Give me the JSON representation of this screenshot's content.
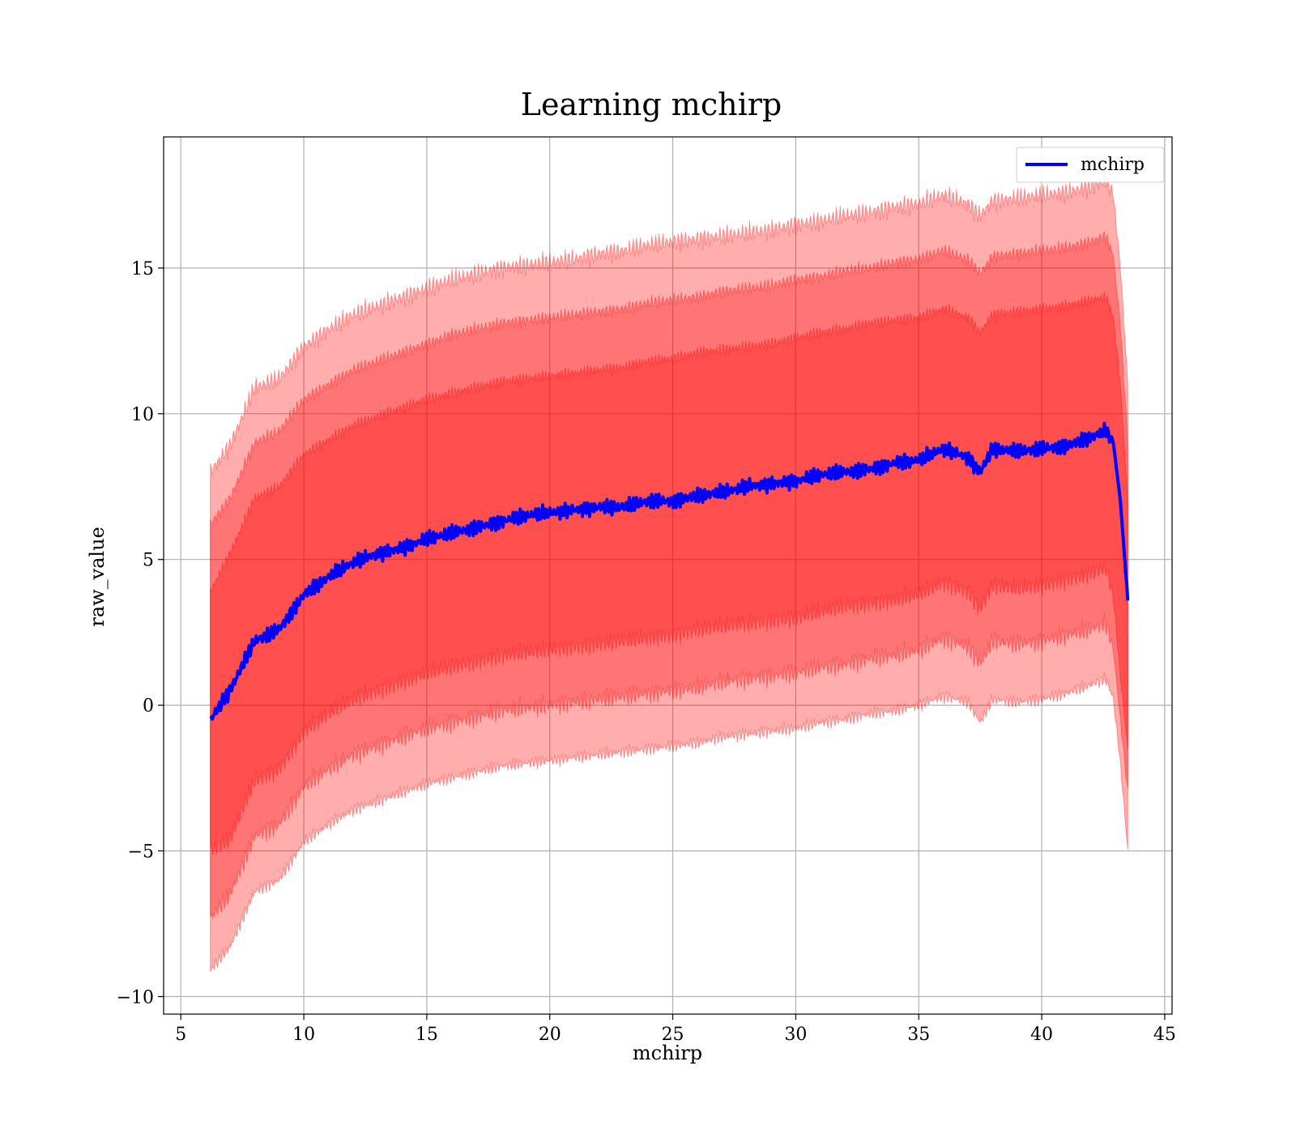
{
  "chart_data": {
    "type": "area",
    "title": "Learning mchirp",
    "xlabel": "mchirp",
    "ylabel": "raw_value",
    "xlim": [
      4.3,
      45.3
    ],
    "ylim": [
      -10.6,
      19.5
    ],
    "xticks": [
      5,
      10,
      15,
      20,
      25,
      30,
      35,
      40,
      45
    ],
    "xtick_labels": [
      "5",
      "10",
      "15",
      "20",
      "25",
      "30",
      "35",
      "40",
      "45"
    ],
    "yticks": [
      -10,
      -5,
      0,
      5,
      10,
      15
    ],
    "ytick_labels": [
      "−10",
      "−5",
      "0",
      "5",
      "10",
      "15"
    ],
    "grid": true,
    "legend_position": "top-right",
    "legend": [
      "mchirp"
    ],
    "colors": {
      "line": "#0000ff",
      "band": "#ff0000",
      "grid": "#b0b0b0"
    },
    "x": [
      6.2,
      7,
      8,
      9,
      10,
      11,
      12,
      13,
      14,
      15,
      16,
      17,
      18,
      19,
      20,
      21,
      22,
      23,
      24,
      25,
      26,
      27,
      28,
      29,
      30,
      31,
      32,
      33,
      34,
      35,
      36,
      37,
      37.5,
      38,
      39,
      40,
      41,
      42,
      42.6,
      42.9,
      43.2,
      43.5
    ],
    "series": [
      {
        "name": "mchirp",
        "values": [
          -0.5,
          0.5,
          2.2,
          2.6,
          3.8,
          4.4,
          4.9,
          5.2,
          5.4,
          5.7,
          5.9,
          6.1,
          6.3,
          6.5,
          6.6,
          6.7,
          6.8,
          6.8,
          7.0,
          7.0,
          7.2,
          7.3,
          7.5,
          7.6,
          7.7,
          7.9,
          8.0,
          8.1,
          8.3,
          8.4,
          8.8,
          8.5,
          8.0,
          8.8,
          8.7,
          8.8,
          8.9,
          9.2,
          9.4,
          9.1,
          7.0,
          3.6
        ]
      }
    ],
    "bands": [
      {
        "sigma": 3,
        "lower": [
          -9.1,
          -8.3,
          -6.4,
          -6.0,
          -4.7,
          -4.1,
          -3.6,
          -3.3,
          -3.0,
          -2.7,
          -2.5,
          -2.3,
          -2.1,
          -2.0,
          -1.9,
          -1.8,
          -1.7,
          -1.6,
          -1.5,
          -1.4,
          -1.3,
          -1.1,
          -1.0,
          -0.9,
          -0.8,
          -0.6,
          -0.5,
          -0.3,
          -0.2,
          0.0,
          0.3,
          0.1,
          -0.6,
          0.2,
          0.1,
          0.2,
          0.4,
          0.7,
          0.9,
          0.3,
          -2.0,
          -5.0
        ],
        "upper": [
          8.0,
          8.9,
          10.9,
          11.2,
          12.3,
          12.9,
          13.4,
          13.7,
          14.0,
          14.3,
          14.6,
          14.8,
          15.0,
          15.1,
          15.2,
          15.3,
          15.5,
          15.6,
          15.8,
          15.9,
          16.0,
          16.1,
          16.2,
          16.3,
          16.5,
          16.6,
          16.8,
          16.9,
          17.1,
          17.2,
          17.5,
          17.2,
          16.8,
          17.3,
          17.4,
          17.5,
          17.6,
          17.8,
          18.0,
          17.6,
          15.0,
          11.0
        ]
      },
      {
        "sigma": 2,
        "lower": [
          -7.3,
          -6.5,
          -4.5,
          -4.1,
          -2.8,
          -2.2,
          -1.7,
          -1.4,
          -1.1,
          -0.8,
          -0.6,
          -0.4,
          -0.2,
          -0.1,
          0.0,
          0.1,
          0.2,
          0.3,
          0.4,
          0.5,
          0.6,
          0.8,
          0.9,
          1.0,
          1.1,
          1.3,
          1.4,
          1.6,
          1.7,
          1.9,
          2.3,
          2.0,
          1.4,
          2.2,
          2.1,
          2.2,
          2.4,
          2.6,
          2.8,
          2.0,
          -0.5,
          -3.0
        ],
        "upper": [
          6.2,
          7.1,
          9.0,
          9.4,
          10.5,
          11.0,
          11.5,
          11.8,
          12.1,
          12.4,
          12.7,
          12.9,
          13.1,
          13.2,
          13.3,
          13.4,
          13.5,
          13.6,
          13.8,
          13.9,
          14.0,
          14.2,
          14.3,
          14.4,
          14.6,
          14.7,
          14.9,
          15.0,
          15.2,
          15.3,
          15.6,
          15.3,
          14.8,
          15.4,
          15.5,
          15.6,
          15.7,
          15.9,
          16.1,
          15.5,
          13.0,
          9.0
        ]
      },
      {
        "sigma": 1,
        "lower": [
          -5.0,
          -4.6,
          -2.6,
          -2.2,
          -0.9,
          -0.3,
          0.2,
          0.5,
          0.8,
          1.1,
          1.3,
          1.5,
          1.7,
          1.8,
          1.9,
          2.0,
          2.1,
          2.2,
          2.3,
          2.4,
          2.6,
          2.7,
          2.8,
          2.9,
          3.0,
          3.2,
          3.4,
          3.5,
          3.6,
          3.8,
          4.2,
          3.9,
          3.3,
          4.1,
          4.0,
          4.1,
          4.3,
          4.5,
          4.7,
          3.8,
          1.0,
          -1.5
        ],
        "upper": [
          3.9,
          5.2,
          7.1,
          7.5,
          8.6,
          9.1,
          9.6,
          9.9,
          10.2,
          10.5,
          10.7,
          10.9,
          11.1,
          11.2,
          11.3,
          11.4,
          11.5,
          11.6,
          11.8,
          11.9,
          12.1,
          12.2,
          12.3,
          12.4,
          12.6,
          12.8,
          12.9,
          13.1,
          13.2,
          13.3,
          13.6,
          13.3,
          12.8,
          13.4,
          13.5,
          13.6,
          13.7,
          13.9,
          14.0,
          13.4,
          11.0,
          7.0
        ]
      }
    ]
  }
}
